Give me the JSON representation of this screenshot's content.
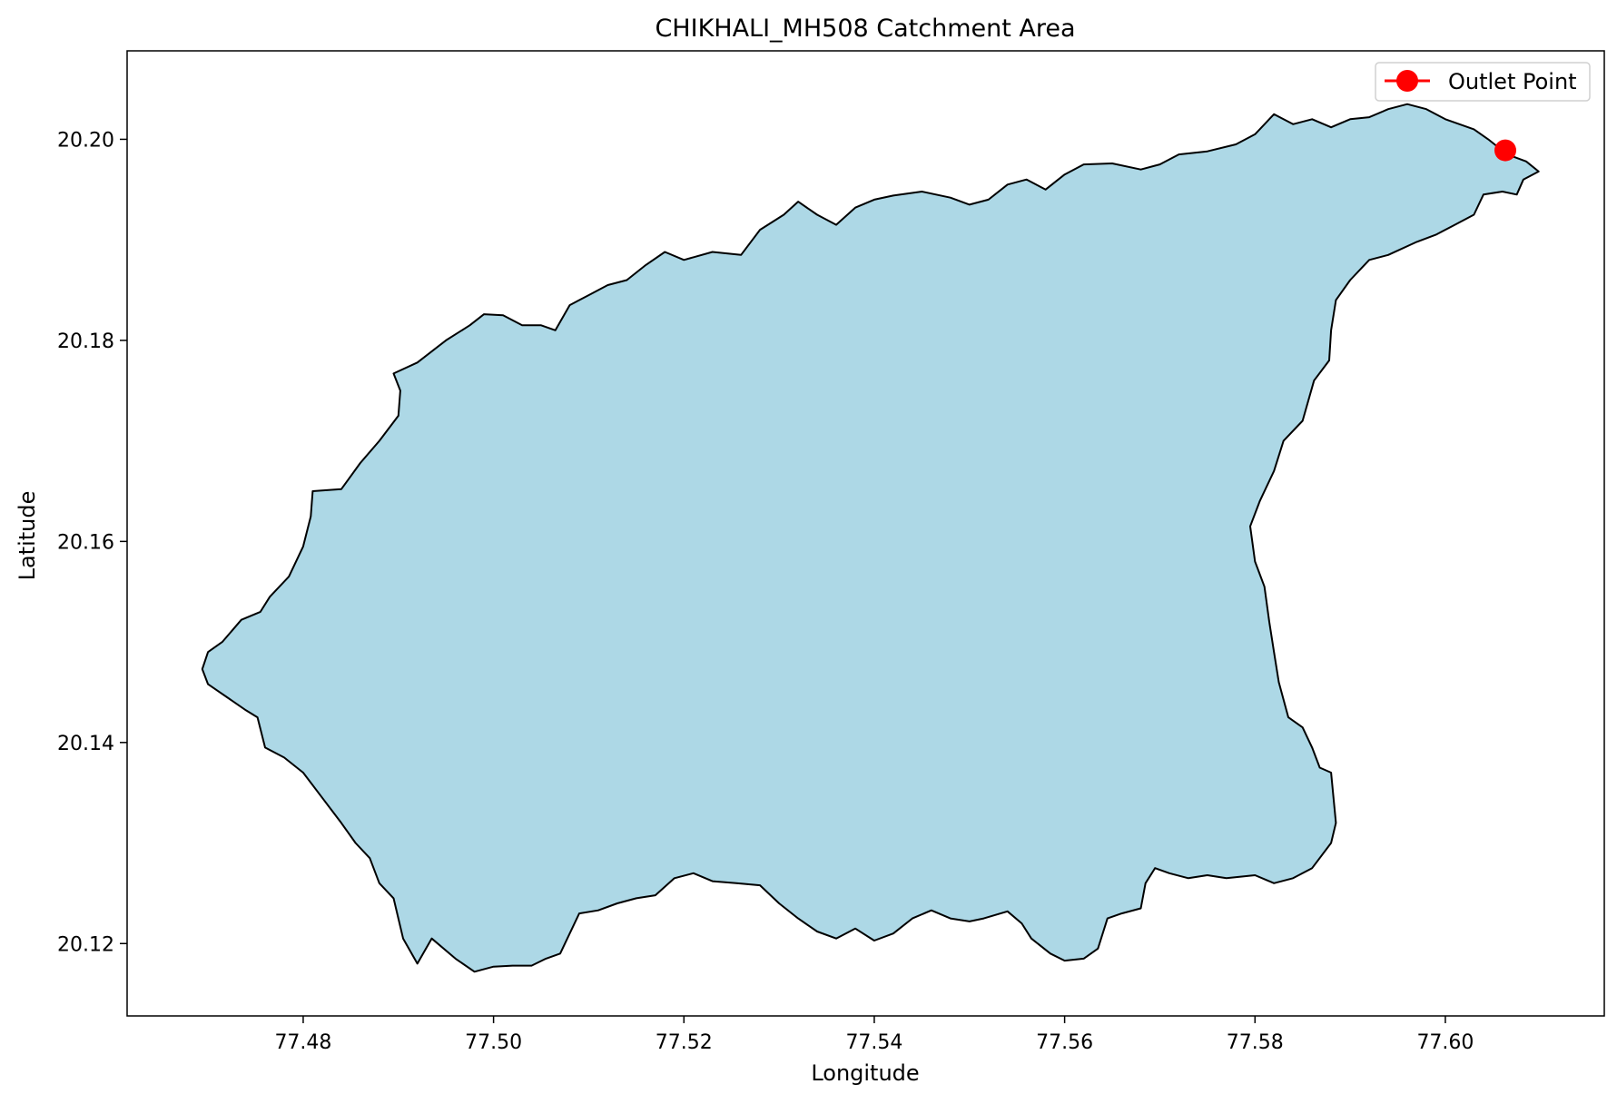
{
  "chart_data": {
    "type": "map",
    "title": "CHIKHALI_MH508 Catchment Area",
    "xlabel": "Longitude",
    "ylabel": "Latitude",
    "xlim": [
      77.4615,
      77.6167
    ],
    "ylim": [
      20.1128,
      20.2088
    ],
    "x_ticks": [
      {
        "value": 77.48,
        "label": "77.48"
      },
      {
        "value": 77.5,
        "label": "77.50"
      },
      {
        "value": 77.52,
        "label": "77.52"
      },
      {
        "value": 77.54,
        "label": "77.54"
      },
      {
        "value": 77.56,
        "label": "77.56"
      },
      {
        "value": 77.58,
        "label": "77.58"
      },
      {
        "value": 77.6,
        "label": "77.60"
      }
    ],
    "y_ticks": [
      {
        "value": 20.12,
        "label": "20.12"
      },
      {
        "value": 20.14,
        "label": "20.14"
      },
      {
        "value": 20.16,
        "label": "20.16"
      },
      {
        "value": 20.18,
        "label": "20.18"
      },
      {
        "value": 20.2,
        "label": "20.20"
      }
    ],
    "grid": false,
    "legend": {
      "position": "top-right",
      "entries": [
        {
          "label": "Outlet Point",
          "marker": "circle",
          "color": "#ff0000"
        }
      ]
    },
    "catchment": {
      "fill_color": "#add8e6",
      "edge_color": "#000000",
      "boundary": [
        [
          77.4694,
          20.1473
        ],
        [
          77.47,
          20.149
        ],
        [
          77.4715,
          20.15
        ],
        [
          77.4735,
          20.1522
        ],
        [
          77.4755,
          20.153
        ],
        [
          77.4765,
          20.1545
        ],
        [
          77.4785,
          20.1565
        ],
        [
          77.48,
          20.1595
        ],
        [
          77.4808,
          20.1625
        ],
        [
          77.481,
          20.165
        ],
        [
          77.484,
          20.1652
        ],
        [
          77.486,
          20.1678
        ],
        [
          77.488,
          20.17
        ],
        [
          77.49,
          20.1725
        ],
        [
          77.4902,
          20.175
        ],
        [
          77.4895,
          20.1767
        ],
        [
          77.492,
          20.1778
        ],
        [
          77.495,
          20.18
        ],
        [
          77.4975,
          20.1815
        ],
        [
          77.499,
          20.1826
        ],
        [
          77.501,
          20.1825
        ],
        [
          77.503,
          20.1815
        ],
        [
          77.505,
          20.1815
        ],
        [
          77.5065,
          20.181
        ],
        [
          77.508,
          20.1835
        ],
        [
          77.51,
          20.1845
        ],
        [
          77.512,
          20.1855
        ],
        [
          77.514,
          20.186
        ],
        [
          77.516,
          20.1875
        ],
        [
          77.518,
          20.1888
        ],
        [
          77.52,
          20.188
        ],
        [
          77.523,
          20.1888
        ],
        [
          77.526,
          20.1885
        ],
        [
          77.528,
          20.191
        ],
        [
          77.5305,
          20.1925
        ],
        [
          77.532,
          20.1938
        ],
        [
          77.534,
          20.1925
        ],
        [
          77.536,
          20.1915
        ],
        [
          77.538,
          20.1932
        ],
        [
          77.54,
          20.194
        ],
        [
          77.542,
          20.1944
        ],
        [
          77.545,
          20.1948
        ],
        [
          77.548,
          20.1942
        ],
        [
          77.55,
          20.1935
        ],
        [
          77.552,
          20.194
        ],
        [
          77.554,
          20.1955
        ],
        [
          77.556,
          20.196
        ],
        [
          77.558,
          20.195
        ],
        [
          77.56,
          20.1965
        ],
        [
          77.562,
          20.1975
        ],
        [
          77.565,
          20.1976
        ],
        [
          77.568,
          20.197
        ],
        [
          77.57,
          20.1975
        ],
        [
          77.572,
          20.1985
        ],
        [
          77.575,
          20.1988
        ],
        [
          77.578,
          20.1995
        ],
        [
          77.58,
          20.2005
        ],
        [
          77.582,
          20.2025
        ],
        [
          77.584,
          20.2015
        ],
        [
          77.586,
          20.202
        ],
        [
          77.588,
          20.2012
        ],
        [
          77.59,
          20.202
        ],
        [
          77.592,
          20.2022
        ],
        [
          77.594,
          20.203
        ],
        [
          77.596,
          20.2035
        ],
        [
          77.598,
          20.203
        ],
        [
          77.6,
          20.202
        ],
        [
          77.603,
          20.201
        ],
        [
          77.6045,
          20.2
        ],
        [
          77.6065,
          20.1985
        ],
        [
          77.6085,
          20.1978
        ],
        [
          77.6098,
          20.1968
        ],
        [
          77.6082,
          20.196
        ],
        [
          77.6075,
          20.1945
        ],
        [
          77.606,
          20.1948
        ],
        [
          77.604,
          20.1945
        ],
        [
          77.603,
          20.1925
        ],
        [
          77.601,
          20.1915
        ],
        [
          77.599,
          20.1905
        ],
        [
          77.597,
          20.1898
        ],
        [
          77.594,
          20.1885
        ],
        [
          77.592,
          20.188
        ],
        [
          77.59,
          20.186
        ],
        [
          77.5885,
          20.184
        ],
        [
          77.588,
          20.181
        ],
        [
          77.5878,
          20.178
        ],
        [
          77.5862,
          20.176
        ],
        [
          77.585,
          20.172
        ],
        [
          77.583,
          20.17
        ],
        [
          77.582,
          20.167
        ],
        [
          77.5805,
          20.164
        ],
        [
          77.5795,
          20.1615
        ],
        [
          77.58,
          20.158
        ],
        [
          77.581,
          20.1555
        ],
        [
          77.5815,
          20.152
        ],
        [
          77.582,
          20.149
        ],
        [
          77.5825,
          20.146
        ],
        [
          77.5835,
          20.1425
        ],
        [
          77.585,
          20.1415
        ],
        [
          77.586,
          20.1395
        ],
        [
          77.5868,
          20.1375
        ],
        [
          77.588,
          20.137
        ],
        [
          77.5885,
          20.132
        ],
        [
          77.588,
          20.13
        ],
        [
          77.586,
          20.1275
        ],
        [
          77.584,
          20.1265
        ],
        [
          77.582,
          20.126
        ],
        [
          77.58,
          20.1268
        ],
        [
          77.577,
          20.1265
        ],
        [
          77.575,
          20.1268
        ],
        [
          77.573,
          20.1265
        ],
        [
          77.571,
          20.127
        ],
        [
          77.5695,
          20.1275
        ],
        [
          77.5685,
          20.126
        ],
        [
          77.568,
          20.1235
        ],
        [
          77.566,
          20.123
        ],
        [
          77.5645,
          20.1225
        ],
        [
          77.5635,
          20.1195
        ],
        [
          77.562,
          20.1185
        ],
        [
          77.56,
          20.1183
        ],
        [
          77.5585,
          20.119
        ],
        [
          77.5565,
          20.1205
        ],
        [
          77.5555,
          20.122
        ],
        [
          77.554,
          20.1232
        ],
        [
          77.5515,
          20.1225
        ],
        [
          77.55,
          20.1222
        ],
        [
          77.548,
          20.1225
        ],
        [
          77.546,
          20.1233
        ],
        [
          77.544,
          20.1225
        ],
        [
          77.542,
          20.121
        ],
        [
          77.54,
          20.1203
        ],
        [
          77.538,
          20.1215
        ],
        [
          77.536,
          20.1205
        ],
        [
          77.534,
          20.1212
        ],
        [
          77.532,
          20.1225
        ],
        [
          77.53,
          20.124
        ],
        [
          77.528,
          20.1258
        ],
        [
          77.5255,
          20.126
        ],
        [
          77.523,
          20.1262
        ],
        [
          77.521,
          20.127
        ],
        [
          77.519,
          20.1265
        ],
        [
          77.517,
          20.1248
        ],
        [
          77.515,
          20.1245
        ],
        [
          77.513,
          20.124
        ],
        [
          77.511,
          20.1233
        ],
        [
          77.509,
          20.123
        ],
        [
          77.508,
          20.121
        ],
        [
          77.507,
          20.119
        ],
        [
          77.5055,
          20.1185
        ],
        [
          77.504,
          20.1178
        ],
        [
          77.502,
          20.1178
        ],
        [
          77.5,
          20.1177
        ],
        [
          77.498,
          20.1172
        ],
        [
          77.496,
          20.1185
        ],
        [
          77.4935,
          20.1205
        ],
        [
          77.492,
          20.118
        ],
        [
          77.4905,
          20.1205
        ],
        [
          77.4895,
          20.1245
        ],
        [
          77.488,
          20.126
        ],
        [
          77.487,
          20.1285
        ],
        [
          77.4855,
          20.13
        ],
        [
          77.484,
          20.132
        ],
        [
          77.482,
          20.1345
        ],
        [
          77.48,
          20.137
        ],
        [
          77.478,
          20.1385
        ],
        [
          77.476,
          20.1395
        ],
        [
          77.4752,
          20.1425
        ],
        [
          77.474,
          20.1432
        ],
        [
          77.472,
          20.1445
        ],
        [
          77.47,
          20.1458
        ],
        [
          77.4694,
          20.1473
        ]
      ]
    },
    "outlet_point": {
      "label": "Outlet Point",
      "lon": 77.6063,
      "lat": 20.1989,
      "color": "#ff0000"
    }
  }
}
